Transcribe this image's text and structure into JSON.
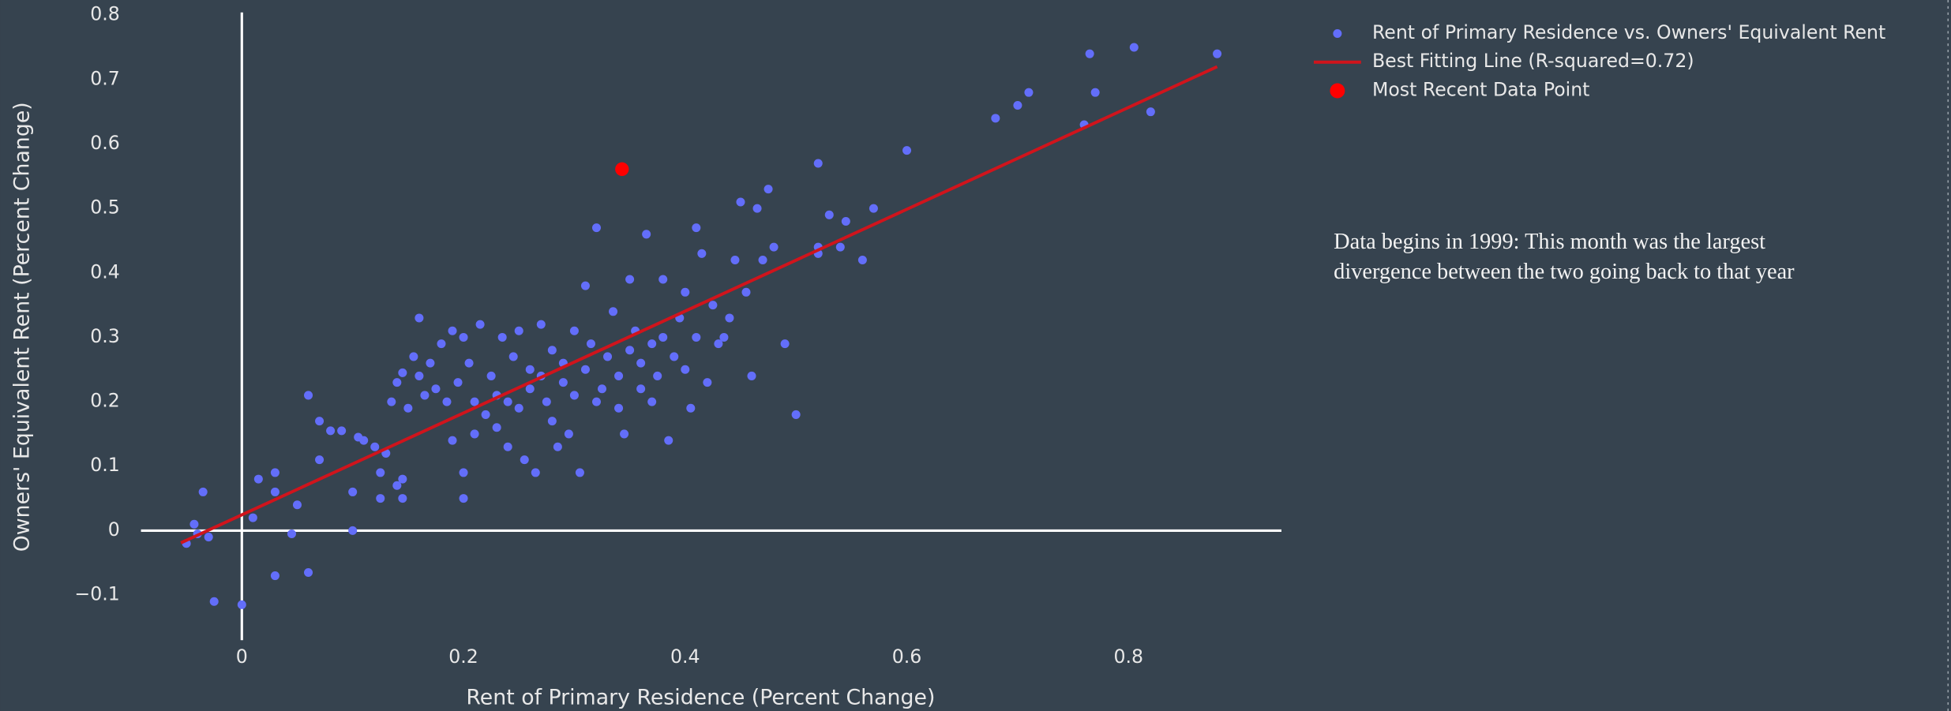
{
  "chart_data": {
    "type": "scatter",
    "x_label": "Rent of Primary Residence (Percent Change)",
    "y_label": "Owners' Equivalent Rent (Percent Change)",
    "annotation": [
      "Data begins in 1999: This month was the largest",
      "divergence between the two going back to that year"
    ],
    "xlim": [
      -0.091,
      0.938
    ],
    "ylim": [
      -0.17,
      0.81
    ],
    "xticks": [
      0,
      0.2,
      0.4,
      0.6,
      0.8
    ],
    "yticks": [
      {
        "value": -0.1,
        "label": "−0.1"
      },
      0,
      0.1,
      0.2,
      0.3,
      0.4,
      0.5,
      0.6,
      0.7,
      0.8
    ],
    "zero_lines": true,
    "legend": "top-right",
    "series": [
      {
        "name": "Rent of Primary Residence vs. Owners' Equivalent Rent",
        "mode": "markers",
        "color": "#636efa",
        "x": [
          -0.05,
          -0.043,
          -0.04,
          -0.035,
          -0.03,
          -0.025,
          0.0,
          0.01,
          0.015,
          0.03,
          0.03,
          0.03,
          0.045,
          0.05,
          0.06,
          0.06,
          0.07,
          0.07,
          0.08,
          0.09,
          0.1,
          0.1,
          0.105,
          0.11,
          0.12,
          0.125,
          0.125,
          0.13,
          0.135,
          0.14,
          0.14,
          0.145,
          0.145,
          0.145,
          0.15,
          0.155,
          0.16,
          0.16,
          0.165,
          0.17,
          0.175,
          0.18,
          0.185,
          0.19,
          0.19,
          0.195,
          0.2,
          0.2,
          0.2,
          0.205,
          0.21,
          0.21,
          0.215,
          0.22,
          0.225,
          0.23,
          0.23,
          0.235,
          0.24,
          0.24,
          0.245,
          0.25,
          0.25,
          0.255,
          0.26,
          0.26,
          0.265,
          0.27,
          0.27,
          0.275,
          0.28,
          0.28,
          0.285,
          0.29,
          0.29,
          0.295,
          0.3,
          0.3,
          0.305,
          0.31,
          0.31,
          0.315,
          0.32,
          0.32,
          0.325,
          0.33,
          0.335,
          0.34,
          0.34,
          0.345,
          0.35,
          0.35,
          0.355,
          0.36,
          0.36,
          0.365,
          0.37,
          0.37,
          0.375,
          0.38,
          0.38,
          0.385,
          0.39,
          0.395,
          0.4,
          0.4,
          0.405,
          0.41,
          0.41,
          0.415,
          0.42,
          0.425,
          0.43,
          0.435,
          0.44,
          0.445,
          0.45,
          0.455,
          0.46,
          0.465,
          0.47,
          0.475,
          0.48,
          0.49,
          0.5,
          0.52,
          0.52,
          0.52,
          0.53,
          0.54,
          0.545,
          0.56,
          0.57,
          0.6,
          0.68,
          0.7,
          0.71,
          0.76,
          0.765,
          0.77,
          0.805,
          0.82,
          0.88
        ],
        "values": [
          -0.02,
          0.01,
          -0.005,
          0.06,
          -0.01,
          -0.11,
          -0.115,
          0.02,
          0.08,
          0.09,
          -0.07,
          0.06,
          -0.005,
          0.04,
          -0.065,
          0.21,
          0.11,
          0.17,
          0.155,
          0.155,
          0.0,
          0.06,
          0.145,
          0.14,
          0.13,
          0.09,
          0.05,
          0.12,
          0.2,
          0.07,
          0.23,
          0.245,
          0.08,
          0.05,
          0.19,
          0.27,
          0.33,
          0.24,
          0.21,
          0.26,
          0.22,
          0.29,
          0.2,
          0.31,
          0.14,
          0.23,
          0.09,
          0.05,
          0.3,
          0.26,
          0.2,
          0.15,
          0.32,
          0.18,
          0.24,
          0.21,
          0.16,
          0.3,
          0.2,
          0.13,
          0.27,
          0.19,
          0.31,
          0.11,
          0.22,
          0.25,
          0.09,
          0.32,
          0.24,
          0.2,
          0.28,
          0.17,
          0.13,
          0.26,
          0.23,
          0.15,
          0.31,
          0.21,
          0.09,
          0.38,
          0.25,
          0.29,
          0.2,
          0.47,
          0.22,
          0.27,
          0.34,
          0.24,
          0.19,
          0.15,
          0.28,
          0.39,
          0.31,
          0.22,
          0.26,
          0.46,
          0.29,
          0.2,
          0.24,
          0.3,
          0.39,
          0.14,
          0.27,
          0.33,
          0.25,
          0.37,
          0.19,
          0.47,
          0.3,
          0.43,
          0.23,
          0.35,
          0.29,
          0.3,
          0.33,
          0.42,
          0.51,
          0.37,
          0.24,
          0.5,
          0.42,
          0.53,
          0.44,
          0.29,
          0.18,
          0.44,
          0.43,
          0.57,
          0.49,
          0.44,
          0.48,
          0.42,
          0.5,
          0.59,
          0.64,
          0.66,
          0.68,
          0.63,
          0.74,
          0.68,
          0.75,
          0.65,
          0.74
        ]
      },
      {
        "name": "Best Fitting Line (R-squared=0.72)",
        "mode": "lines",
        "color": "#d0141c",
        "x": [
          -0.055,
          0.88
        ],
        "values": [
          -0.019,
          0.72
        ]
      },
      {
        "name": "Most Recent Data Point",
        "mode": "markers",
        "color": "#ff0000",
        "size": "large",
        "x": [
          0.343
        ],
        "values": [
          0.561
        ]
      }
    ]
  }
}
